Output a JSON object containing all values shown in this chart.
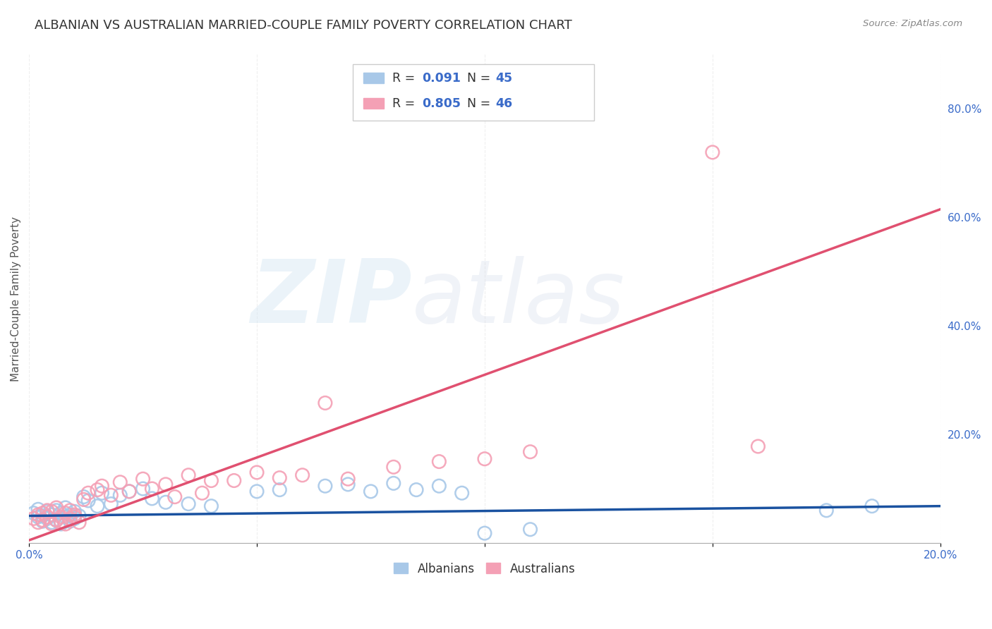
{
  "title": "ALBANIAN VS AUSTRALIAN MARRIED-COUPLE FAMILY POVERTY CORRELATION CHART",
  "source": "Source: ZipAtlas.com",
  "ylabel": "Married-Couple Family Poverty",
  "watermark_zip": "ZIP",
  "watermark_atlas": "atlas",
  "xlim": [
    0.0,
    0.2
  ],
  "ylim": [
    0.0,
    0.9
  ],
  "xticks": [
    0.0,
    0.05,
    0.1,
    0.15,
    0.2
  ],
  "xtick_labels": [
    "0.0%",
    "",
    "",
    "",
    "20.0%"
  ],
  "ytick_positions_right": [
    0.2,
    0.4,
    0.6,
    0.8
  ],
  "ytick_labels_right": [
    "20.0%",
    "40.0%",
    "60.0%",
    "80.0%"
  ],
  "albanian_color": "#a8c8e8",
  "australian_color": "#f4a0b5",
  "albanian_line_color": "#1a52a0",
  "australian_line_color": "#e05070",
  "legend_R_albanian": "0.091",
  "legend_N_albanian": "45",
  "legend_R_australian": "0.805",
  "legend_N_australian": "46",
  "albanian_scatter_x": [
    0.001,
    0.002,
    0.002,
    0.003,
    0.003,
    0.004,
    0.004,
    0.005,
    0.005,
    0.006,
    0.006,
    0.007,
    0.007,
    0.008,
    0.008,
    0.009,
    0.009,
    0.01,
    0.01,
    0.011,
    0.012,
    0.013,
    0.015,
    0.016,
    0.018,
    0.02,
    0.022,
    0.025,
    0.027,
    0.03,
    0.035,
    0.04,
    0.05,
    0.055,
    0.065,
    0.07,
    0.075,
    0.08,
    0.085,
    0.09,
    0.095,
    0.1,
    0.11,
    0.175,
    0.185
  ],
  "albanian_scatter_y": [
    0.055,
    0.048,
    0.062,
    0.05,
    0.04,
    0.058,
    0.045,
    0.052,
    0.038,
    0.06,
    0.042,
    0.055,
    0.035,
    0.048,
    0.065,
    0.052,
    0.04,
    0.058,
    0.045,
    0.05,
    0.085,
    0.078,
    0.068,
    0.092,
    0.072,
    0.088,
    0.095,
    0.1,
    0.082,
    0.075,
    0.072,
    0.068,
    0.095,
    0.098,
    0.105,
    0.108,
    0.095,
    0.11,
    0.098,
    0.105,
    0.092,
    0.018,
    0.025,
    0.06,
    0.068
  ],
  "australian_scatter_x": [
    0.001,
    0.002,
    0.002,
    0.003,
    0.003,
    0.004,
    0.004,
    0.005,
    0.005,
    0.006,
    0.006,
    0.007,
    0.007,
    0.008,
    0.008,
    0.009,
    0.009,
    0.01,
    0.01,
    0.011,
    0.012,
    0.013,
    0.015,
    0.016,
    0.018,
    0.02,
    0.022,
    0.025,
    0.027,
    0.03,
    0.032,
    0.035,
    0.038,
    0.04,
    0.045,
    0.05,
    0.055,
    0.06,
    0.065,
    0.07,
    0.08,
    0.09,
    0.1,
    0.11,
    0.15,
    0.16
  ],
  "australian_scatter_y": [
    0.045,
    0.052,
    0.038,
    0.055,
    0.042,
    0.048,
    0.06,
    0.035,
    0.058,
    0.042,
    0.065,
    0.048,
    0.04,
    0.055,
    0.035,
    0.06,
    0.045,
    0.052,
    0.048,
    0.038,
    0.08,
    0.092,
    0.098,
    0.105,
    0.088,
    0.112,
    0.095,
    0.118,
    0.1,
    0.108,
    0.085,
    0.125,
    0.092,
    0.115,
    0.115,
    0.13,
    0.12,
    0.125,
    0.258,
    0.118,
    0.14,
    0.15,
    0.155,
    0.168,
    0.72,
    0.178
  ],
  "albanian_line_x": [
    0.0,
    0.2
  ],
  "albanian_line_y": [
    0.05,
    0.068
  ],
  "australian_line_x": [
    0.0,
    0.2
  ],
  "australian_line_y": [
    0.005,
    0.615
  ],
  "background_color": "#ffffff",
  "grid_color": "#cccccc",
  "title_fontsize": 13,
  "axis_label_fontsize": 11,
  "tick_fontsize": 11
}
